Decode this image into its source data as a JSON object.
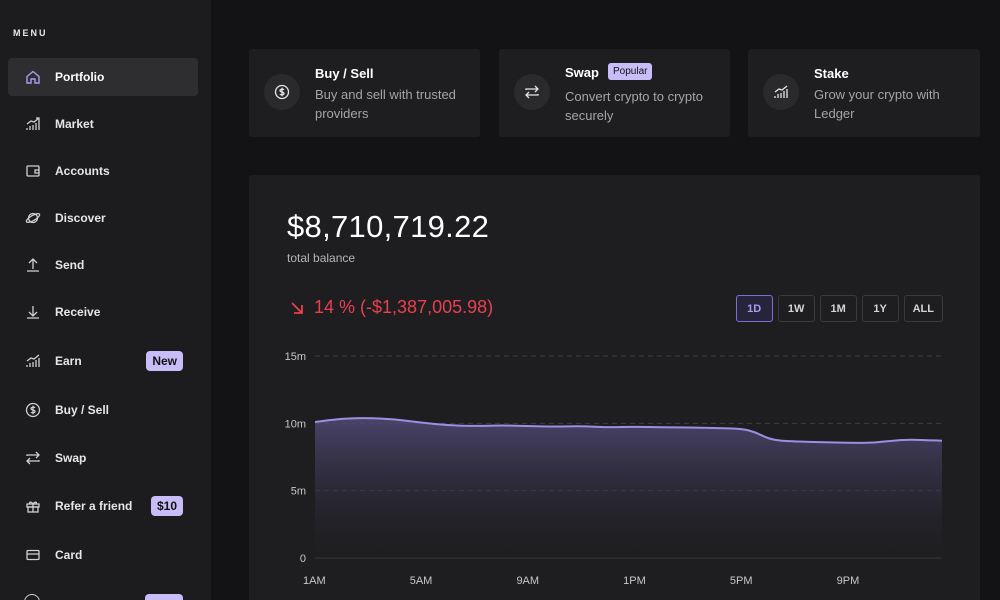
{
  "sidebar": {
    "menu_title": "MENU",
    "items": [
      {
        "label": "Portfolio",
        "icon": "home-icon",
        "active": true
      },
      {
        "label": "Market",
        "icon": "market-chart-icon"
      },
      {
        "label": "Accounts",
        "icon": "wallet-icon"
      },
      {
        "label": "Discover",
        "icon": "planet-icon"
      },
      {
        "label": "Send",
        "icon": "send-arrow-up-icon"
      },
      {
        "label": "Receive",
        "icon": "receive-arrow-down-icon"
      },
      {
        "label": "Earn",
        "icon": "earn-chart-icon",
        "badge": "New"
      },
      {
        "label": "Buy / Sell",
        "icon": "dollar-coin-icon"
      },
      {
        "label": "Swap",
        "icon": "swap-arrows-icon"
      },
      {
        "label": "Refer a friend",
        "icon": "gift-icon",
        "badge": "$10"
      },
      {
        "label": "Card",
        "icon": "card-icon"
      }
    ]
  },
  "cards": [
    {
      "title": "Buy / Sell",
      "description": "Buy and sell with trusted providers",
      "icon": "dollar-coin-icon"
    },
    {
      "title": "Swap",
      "tag": "Popular",
      "description": "Convert crypto to crypto securely",
      "icon": "swap-arrows-icon"
    },
    {
      "title": "Stake",
      "description": "Grow your crypto with Ledger",
      "icon": "stake-chart-icon"
    }
  ],
  "balance": {
    "value": "$8,710,719.22",
    "label": "total balance",
    "change": "14 % (-$1,387,005.98)",
    "change_color": "#e8404f"
  },
  "range_buttons": [
    {
      "label": "1D",
      "active": true
    },
    {
      "label": "1W"
    },
    {
      "label": "1M"
    },
    {
      "label": "1Y"
    },
    {
      "label": "ALL"
    }
  ],
  "colors": {
    "accent": "#a99cf3",
    "badge": "#c9bdf8",
    "line": "#9b8fe0",
    "negative": "#e8404f"
  },
  "chart_data": {
    "type": "area",
    "title": "",
    "xlabel": "",
    "ylabel": "",
    "ylim": [
      0,
      15000000
    ],
    "y_ticks": [
      {
        "value": 0,
        "label": "0"
      },
      {
        "value": 5000000,
        "label": "5m"
      },
      {
        "value": 10000000,
        "label": "10m"
      },
      {
        "value": 15000000,
        "label": "15m"
      }
    ],
    "x_ticks": [
      {
        "hour": 0,
        "label": "1AM"
      },
      {
        "hour": 4,
        "label": "5AM"
      },
      {
        "hour": 8,
        "label": "9AM"
      },
      {
        "hour": 12,
        "label": "1PM"
      },
      {
        "hour": 16,
        "label": "5PM"
      },
      {
        "hour": 20,
        "label": "9PM"
      }
    ],
    "xlim": [
      0,
      23.5
    ],
    "series": [
      {
        "name": "total balance",
        "x": [
          0,
          1,
          2,
          3,
          4,
          5,
          6,
          7,
          8,
          9,
          10,
          11,
          12,
          13,
          14,
          15,
          16,
          16.5,
          17,
          17.5,
          18,
          19,
          20,
          21,
          22,
          23,
          23.5
        ],
        "values": [
          10100000,
          10350000,
          10400000,
          10300000,
          10050000,
          9850000,
          9800000,
          9850000,
          9800000,
          9750000,
          9800000,
          9700000,
          9750000,
          9700000,
          9700000,
          9650000,
          9600000,
          9350000,
          8850000,
          8700000,
          8650000,
          8600000,
          8550000,
          8550000,
          8800000,
          8750000,
          8710000
        ]
      }
    ]
  }
}
